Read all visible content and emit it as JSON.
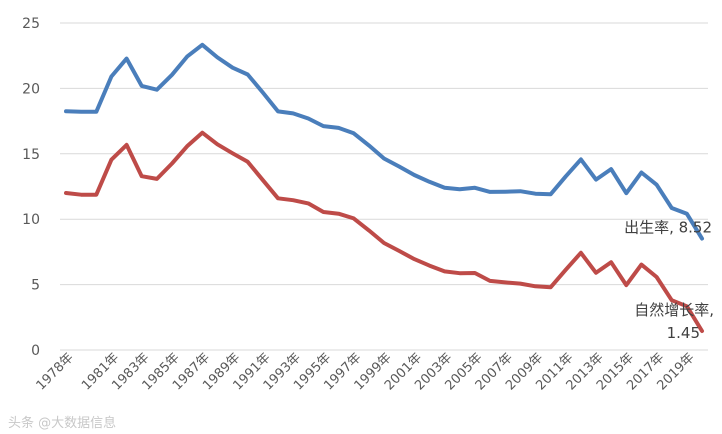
{
  "chart_data": {
    "type": "line",
    "x": [
      "1978年",
      "1979年",
      "1980年",
      "1981年",
      "1982年",
      "1983年",
      "1984年",
      "1985年",
      "1986年",
      "1987年",
      "1988年",
      "1989年",
      "1990年",
      "1991年",
      "1992年",
      "1993年",
      "1994年",
      "1995年",
      "1996年",
      "1997年",
      "1998年",
      "1999年",
      "2000年",
      "2001年",
      "2002年",
      "2003年",
      "2004年",
      "2005年",
      "2006年",
      "2007年",
      "2008年",
      "2009年",
      "2010年",
      "2011年",
      "2012年",
      "2013年",
      "2014年",
      "2015年",
      "2016年",
      "2017年",
      "2018年",
      "2019年",
      "2020年"
    ],
    "x_tick_labels": [
      "1978年",
      "1981年",
      "1983年",
      "1985年",
      "1987年",
      "1989年",
      "1991年",
      "1993年",
      "1995年",
      "1997年",
      "1999年",
      "2001年",
      "2003年",
      "2005年",
      "2007年",
      "2009年",
      "2011年",
      "2013年",
      "2015年",
      "2017年",
      "2019年"
    ],
    "series": [
      {
        "key": "birth",
        "color": "#4a7ebb",
        "values": [
          18.25,
          18.21,
          18.21,
          20.91,
          22.28,
          20.19,
          19.9,
          21.04,
          22.43,
          23.33,
          22.37,
          21.58,
          21.06,
          19.68,
          18.24,
          18.09,
          17.7,
          17.12,
          16.98,
          16.57,
          15.64,
          14.64,
          14.03,
          13.38,
          12.86,
          12.41,
          12.29,
          12.4,
          12.09,
          12.1,
          12.14,
          11.95,
          11.9,
          13.27,
          14.57,
          13.03,
          13.83,
          11.99,
          13.57,
          12.64,
          10.86,
          10.41,
          8.52
        ]
      },
      {
        "key": "growth",
        "color": "#be4b48",
        "values": [
          12.0,
          11.87,
          11.87,
          14.55,
          15.68,
          13.29,
          13.08,
          14.26,
          15.57,
          16.61,
          15.73,
          15.04,
          14.39,
          12.98,
          11.6,
          11.45,
          11.21,
          10.55,
          10.42,
          10.06,
          9.14,
          8.18,
          7.58,
          6.95,
          6.45,
          6.01,
          5.87,
          5.89,
          5.28,
          5.17,
          5.08,
          4.87,
          4.79,
          6.13,
          7.43,
          5.9,
          6.71,
          4.96,
          6.53,
          5.58,
          3.81,
          3.34,
          1.45
        ]
      }
    ],
    "end_labels": [
      {
        "series": "birth",
        "lines": [
          "出生率, 8.52"
        ]
      },
      {
        "series": "growth",
        "lines": [
          "自然增长率,",
          "1.45"
        ]
      }
    ],
    "y_ticks": [
      "0",
      "5",
      "10",
      "15",
      "20",
      "25"
    ],
    "ylim": [
      0,
      25
    ],
    "grid": true,
    "title": "",
    "xlabel": "",
    "ylabel": ""
  },
  "watermark": "头条 @大数据信息"
}
